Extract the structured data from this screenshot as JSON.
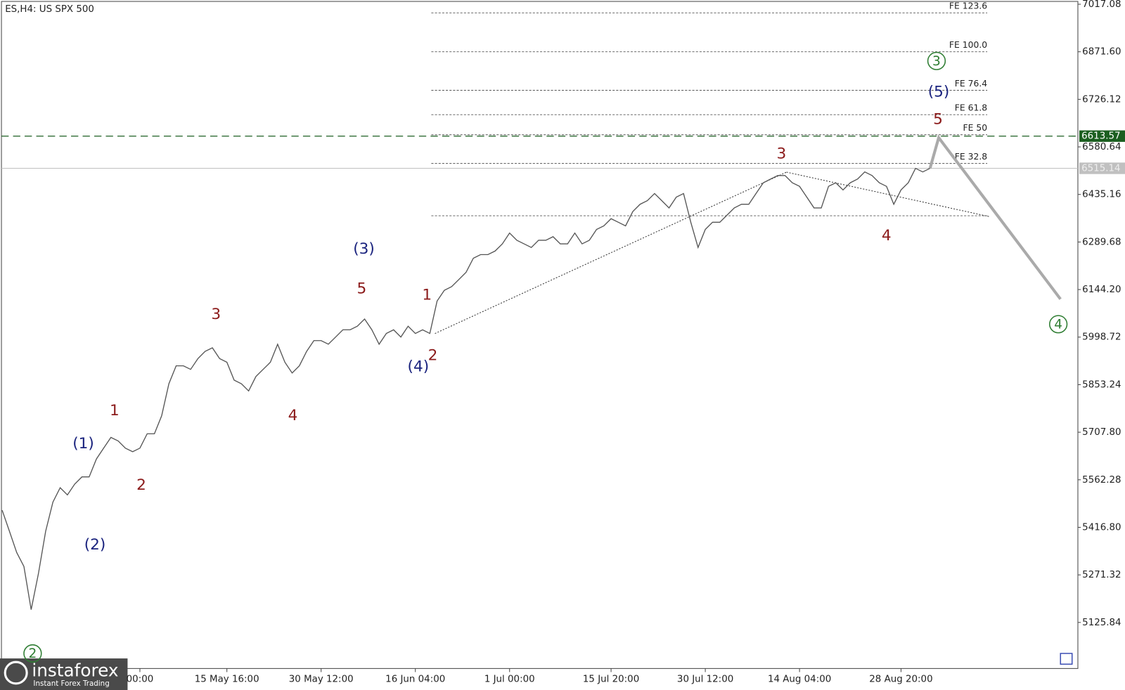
{
  "chart_data": {
    "type": "line",
    "title": "ES,H4:  US SPX 500",
    "categories": [
      null,
      null,
      null,
      null,
      null,
      null,
      null,
      null,
      null,
      null,
      null,
      null,
      null,
      null,
      null,
      null,
      null,
      null,
      null,
      "00:00",
      null,
      null,
      null,
      null,
      null,
      null,
      null,
      null,
      null,
      null,
      null,
      "15 May 16:00",
      null,
      null,
      null,
      null,
      null,
      null,
      null,
      null,
      null,
      null,
      null,
      null,
      "30 May 12:00",
      null,
      null,
      null,
      null,
      null,
      null,
      null,
      null,
      null,
      null,
      null,
      null,
      "16 Jun 04:00",
      null,
      null,
      null,
      null,
      null,
      null,
      null,
      null,
      null,
      null,
      null,
      null,
      "1 Jul 00:00",
      null,
      null,
      null,
      null,
      null,
      null,
      null,
      null,
      null,
      null,
      null,
      null,
      null,
      "15 Jul 20:00",
      null,
      null,
      null,
      null,
      null,
      null,
      null,
      null,
      null,
      null,
      null,
      null,
      "30 Jul 12:00",
      null,
      null,
      null,
      null,
      null,
      null,
      null,
      null,
      null,
      null,
      null,
      null,
      "14 Aug 04:00",
      null,
      null,
      null,
      null,
      null,
      null,
      null,
      null,
      null,
      null,
      null,
      null,
      null,
      "28 Aug 20:00",
      null,
      null,
      null,
      null
    ],
    "series": [
      {
        "color": "#555555",
        "values": [
          5469,
          5405,
          5340,
          5297,
          5165,
          5275,
          5405,
          5494,
          5538,
          5516,
          5549,
          5571,
          5571,
          5626,
          5659,
          5692,
          5681,
          5659,
          5648,
          5659,
          5703,
          5703,
          5758,
          5856,
          5911,
          5911,
          5900,
          5933,
          5955,
          5966,
          5933,
          5922,
          5867,
          5856,
          5834,
          5878,
          5900,
          5922,
          5977,
          5922,
          5889,
          5911,
          5955,
          5988,
          5988,
          5977,
          5999,
          6021,
          6021,
          6032,
          6054,
          6021,
          5977,
          6010,
          6021,
          5999,
          6032,
          6010,
          6021,
          6010,
          6109,
          6142,
          6153,
          6175,
          6197,
          6240,
          6251,
          6251,
          6262,
          6284,
          6317,
          6295,
          6284,
          6273,
          6295,
          6295,
          6306,
          6284,
          6284,
          6317,
          6284,
          6295,
          6328,
          6339,
          6361,
          6350,
          6339,
          6383,
          6405,
          6416,
          6438,
          6416,
          6394,
          6427,
          6438,
          6350,
          6273,
          6328,
          6350,
          6350,
          6372,
          6394,
          6405,
          6405,
          6438,
          6471,
          6482,
          6493,
          6493,
          6471,
          6460,
          6427,
          6394,
          6394,
          6460,
          6471,
          6449,
          6471,
          6482,
          6504,
          6493,
          6471,
          6460,
          6405,
          6449,
          6471,
          6515,
          6504,
          6515
        ]
      }
    ],
    "projection": {
      "color": "#aaaaaa",
      "values": [
        6515,
        6609,
        6115
      ]
    },
    "ylim": [
      4985,
      7030
    ],
    "yticks": [
      7017.08,
      {
        "value": 6871.6,
        "label": "6871.60"
      },
      6726.12,
      6580.64,
      6435.16,
      6289.68,
      {
        "value": 6144.2,
        "label": "6144.20"
      },
      5998.72,
      5853.24,
      {
        "value": 5707.8,
        "label": "5707.80"
      },
      5562.28,
      {
        "value": 5416.8,
        "label": "5416.80"
      },
      5271.32,
      5125.84
    ],
    "levels": [
      {
        "label": "FE 123.6",
        "value": 6990.7
      },
      {
        "label": "FE 100.0",
        "value": 6871.6
      },
      {
        "label": "FE 76.4",
        "value": 6753.8
      },
      {
        "label": "FE 61.8",
        "value": 6679.2
      },
      {
        "label": "FE 50",
        "value": 6617.8
      },
      {
        "label": "FE 32.8",
        "value": 6530
      },
      {
        "value": 6370
      }
    ],
    "price_lines": [
      {
        "value": 6613.57,
        "color": "#1b5e20"
      },
      {
        "value": 6515.14,
        "color": "#c0c0c0"
      }
    ],
    "annotations": [
      {
        "text": "(1)",
        "color": "#1a237e"
      },
      {
        "text": "(2)",
        "color": "#1a237e"
      },
      {
        "text": "(3)",
        "color": "#1a237e"
      },
      {
        "text": "(4)",
        "color": "#1a237e"
      },
      {
        "text": "(5)",
        "color": "#1a237e"
      },
      {
        "text": "1",
        "color": "#8b1a1a"
      },
      {
        "text": "2",
        "color": "#8b1a1a"
      },
      {
        "text": "3",
        "color": "#8b1a1a"
      },
      {
        "text": "4",
        "color": "#8b1a1a"
      },
      {
        "text": "5",
        "color": "#8b1a1a"
      },
      {
        "text": "1",
        "color": "#8b1a1a"
      },
      {
        "text": "2",
        "color": "#8b1a1a"
      },
      {
        "text": "3",
        "color": "#8b1a1a"
      },
      {
        "text": "4",
        "color": "#8b1a1a"
      },
      {
        "text": "5",
        "color": "#8b1a1a"
      },
      {
        "text": "2",
        "color": "#2e7d32",
        "circle": true
      },
      {
        "text": "3",
        "color": "#2e7d32",
        "circle": true
      },
      {
        "text": "4",
        "color": "#2e7d32",
        "circle": true
      }
    ],
    "logo": {
      "name": "instaforex",
      "tagline": "Instant Forex Trading"
    }
  }
}
